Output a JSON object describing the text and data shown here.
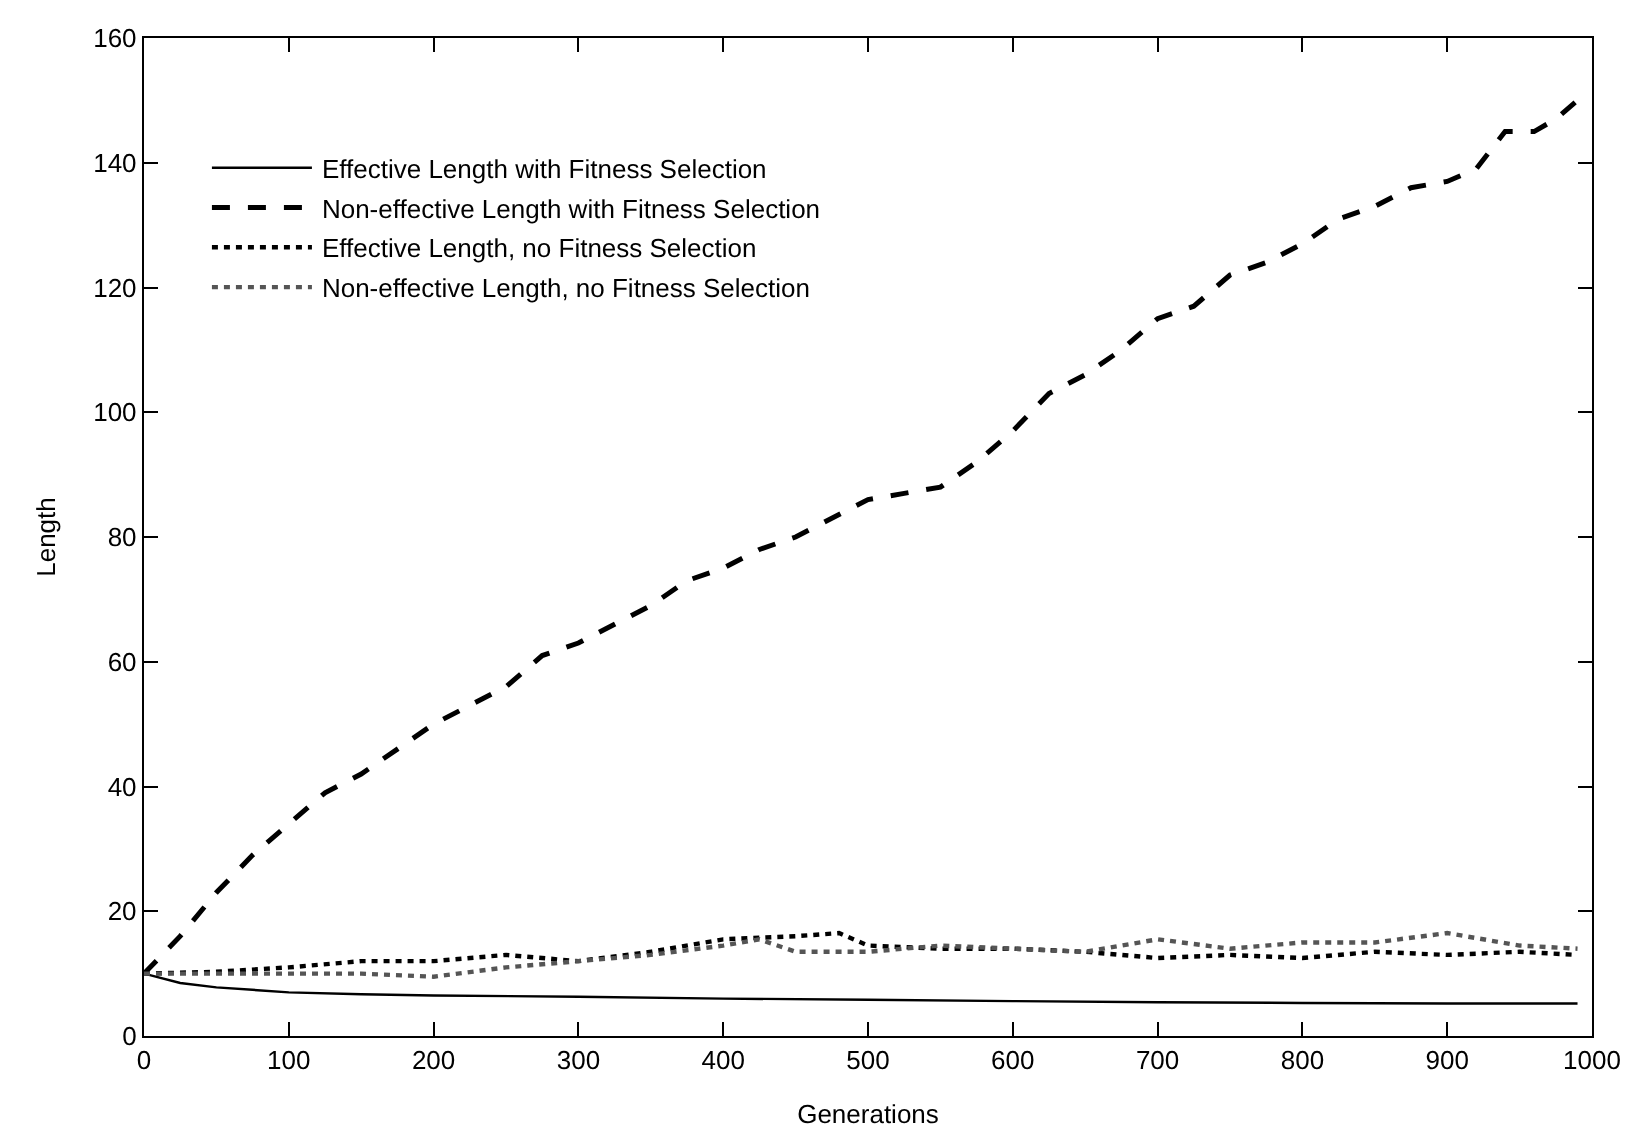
{
  "chart_data": {
    "type": "line",
    "xlabel": "Generations",
    "ylabel": "Length",
    "xlim": [
      0,
      1000
    ],
    "xticks": [
      0,
      100,
      200,
      300,
      400,
      500,
      600,
      700,
      800,
      900,
      1000
    ],
    "ylim": [
      0,
      160
    ],
    "yticks": [
      0,
      20,
      40,
      60,
      80,
      100,
      120,
      140,
      160
    ],
    "legend": "top left",
    "marker": "none",
    "series": [
      {
        "name": "Effective Length with Fitness Selection",
        "color": "#000000",
        "line_style": "solid",
        "x": [
          0,
          25,
          50,
          100,
          150,
          200,
          300,
          400,
          500,
          600,
          700,
          800,
          900,
          990
        ],
        "values": [
          10,
          8.5,
          7.8,
          7,
          6.7,
          6.5,
          6.3,
          6,
          5.8,
          5.6,
          5.4,
          5.3,
          5.2,
          5.2
        ]
      },
      {
        "name": "Non-effective Length with Fitness Selection",
        "color": "#000000",
        "line_style": "dashed",
        "x": [
          0,
          25,
          50,
          75,
          100,
          125,
          150,
          175,
          200,
          225,
          250,
          275,
          300,
          325,
          350,
          375,
          400,
          425,
          450,
          475,
          500,
          525,
          550,
          575,
          600,
          625,
          650,
          675,
          700,
          725,
          750,
          775,
          800,
          825,
          850,
          875,
          900,
          920,
          940,
          960,
          975,
          990
        ],
        "values": [
          10,
          16,
          23,
          29,
          34,
          39,
          42,
          46,
          50,
          53,
          56,
          61,
          63,
          66,
          69,
          73,
          75,
          78,
          80,
          83,
          86,
          87,
          88,
          92,
          97,
          103,
          106,
          110,
          115,
          117,
          122,
          124,
          127,
          131,
          133,
          136,
          137,
          139,
          145,
          145,
          147,
          150
        ]
      },
      {
        "name": "Effective Length, no Fitness Selection",
        "color": "#000000",
        "line_style": "dotted",
        "x": [
          0,
          50,
          100,
          150,
          200,
          250,
          300,
          350,
          400,
          450,
          480,
          500,
          550,
          600,
          650,
          700,
          750,
          800,
          850,
          900,
          950,
          990
        ],
        "values": [
          10,
          10.3,
          11,
          12,
          12,
          13,
          12,
          13.5,
          15.5,
          16,
          16.5,
          14.5,
          14,
          14,
          13.5,
          12.5,
          13,
          12.5,
          13.5,
          13,
          13.5,
          13
        ]
      },
      {
        "name": "Non-effective Length, no Fitness Selection",
        "color": "#555555",
        "line_style": "dotted",
        "x": [
          0,
          50,
          100,
          150,
          200,
          250,
          300,
          350,
          400,
          425,
          450,
          500,
          550,
          600,
          650,
          700,
          750,
          800,
          850,
          900,
          950,
          990
        ],
        "values": [
          10,
          10,
          10,
          10,
          9.5,
          11,
          12,
          13,
          14.5,
          15.5,
          13.5,
          13.5,
          14.5,
          14,
          13.5,
          15.5,
          14,
          15,
          15,
          16.5,
          14.5,
          14
        ]
      }
    ]
  }
}
